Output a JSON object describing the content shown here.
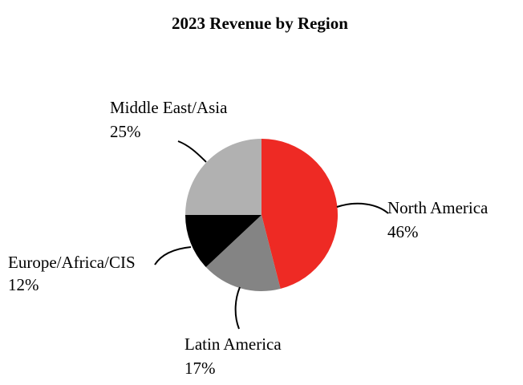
{
  "chart_data": {
    "type": "pie",
    "title": "2023 Revenue by Region",
    "start_angle_deg": 0,
    "direction": "clockwise",
    "slices": [
      {
        "label": "North America",
        "pct_label": "46%",
        "value": 46,
        "color": "#ee2a24"
      },
      {
        "label": "Latin America",
        "pct_label": "17%",
        "value": 17,
        "color": "#848484"
      },
      {
        "label": "Europe/Africa/CIS",
        "pct_label": "12%",
        "value": 12,
        "color": "#000000"
      },
      {
        "label": "Middle East/Asia",
        "pct_label": "25%",
        "value": 25,
        "color": "#b1b1b1"
      }
    ],
    "legend": "none",
    "grid": false
  }
}
